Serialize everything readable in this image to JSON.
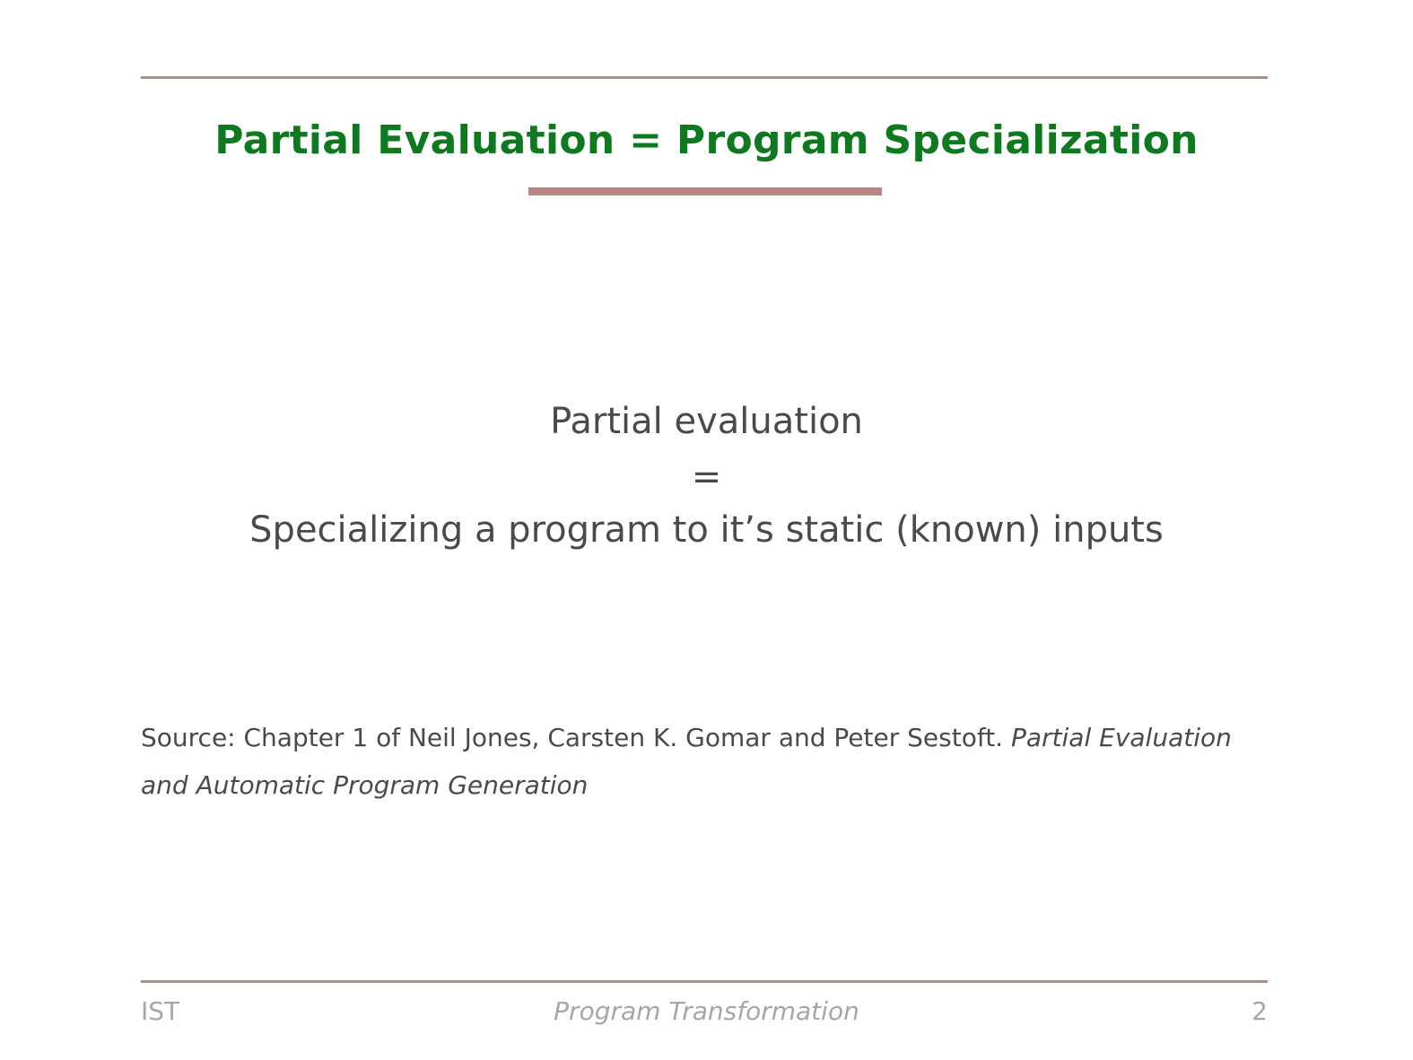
{
  "slide": {
    "title": "Partial Evaluation = Program Specialization",
    "definition": {
      "term": "Partial evaluation",
      "equals": "=",
      "meaning": "Specializing a program to it’s static (known) inputs"
    },
    "source": {
      "prefix": "Source: Chapter 1 of Neil Jones, Carsten K. Gomar and Peter Sestoft. ",
      "book_title": "Partial Evaluation and Automatic Program Generation"
    }
  },
  "footer": {
    "left": "IST",
    "center": "Program Transformation",
    "page_number": "2"
  },
  "colors": {
    "title": "#0d7a1f",
    "rules": "#b98585",
    "body_text": "#4a4a4a",
    "footer_text": "#a6a6a6"
  }
}
